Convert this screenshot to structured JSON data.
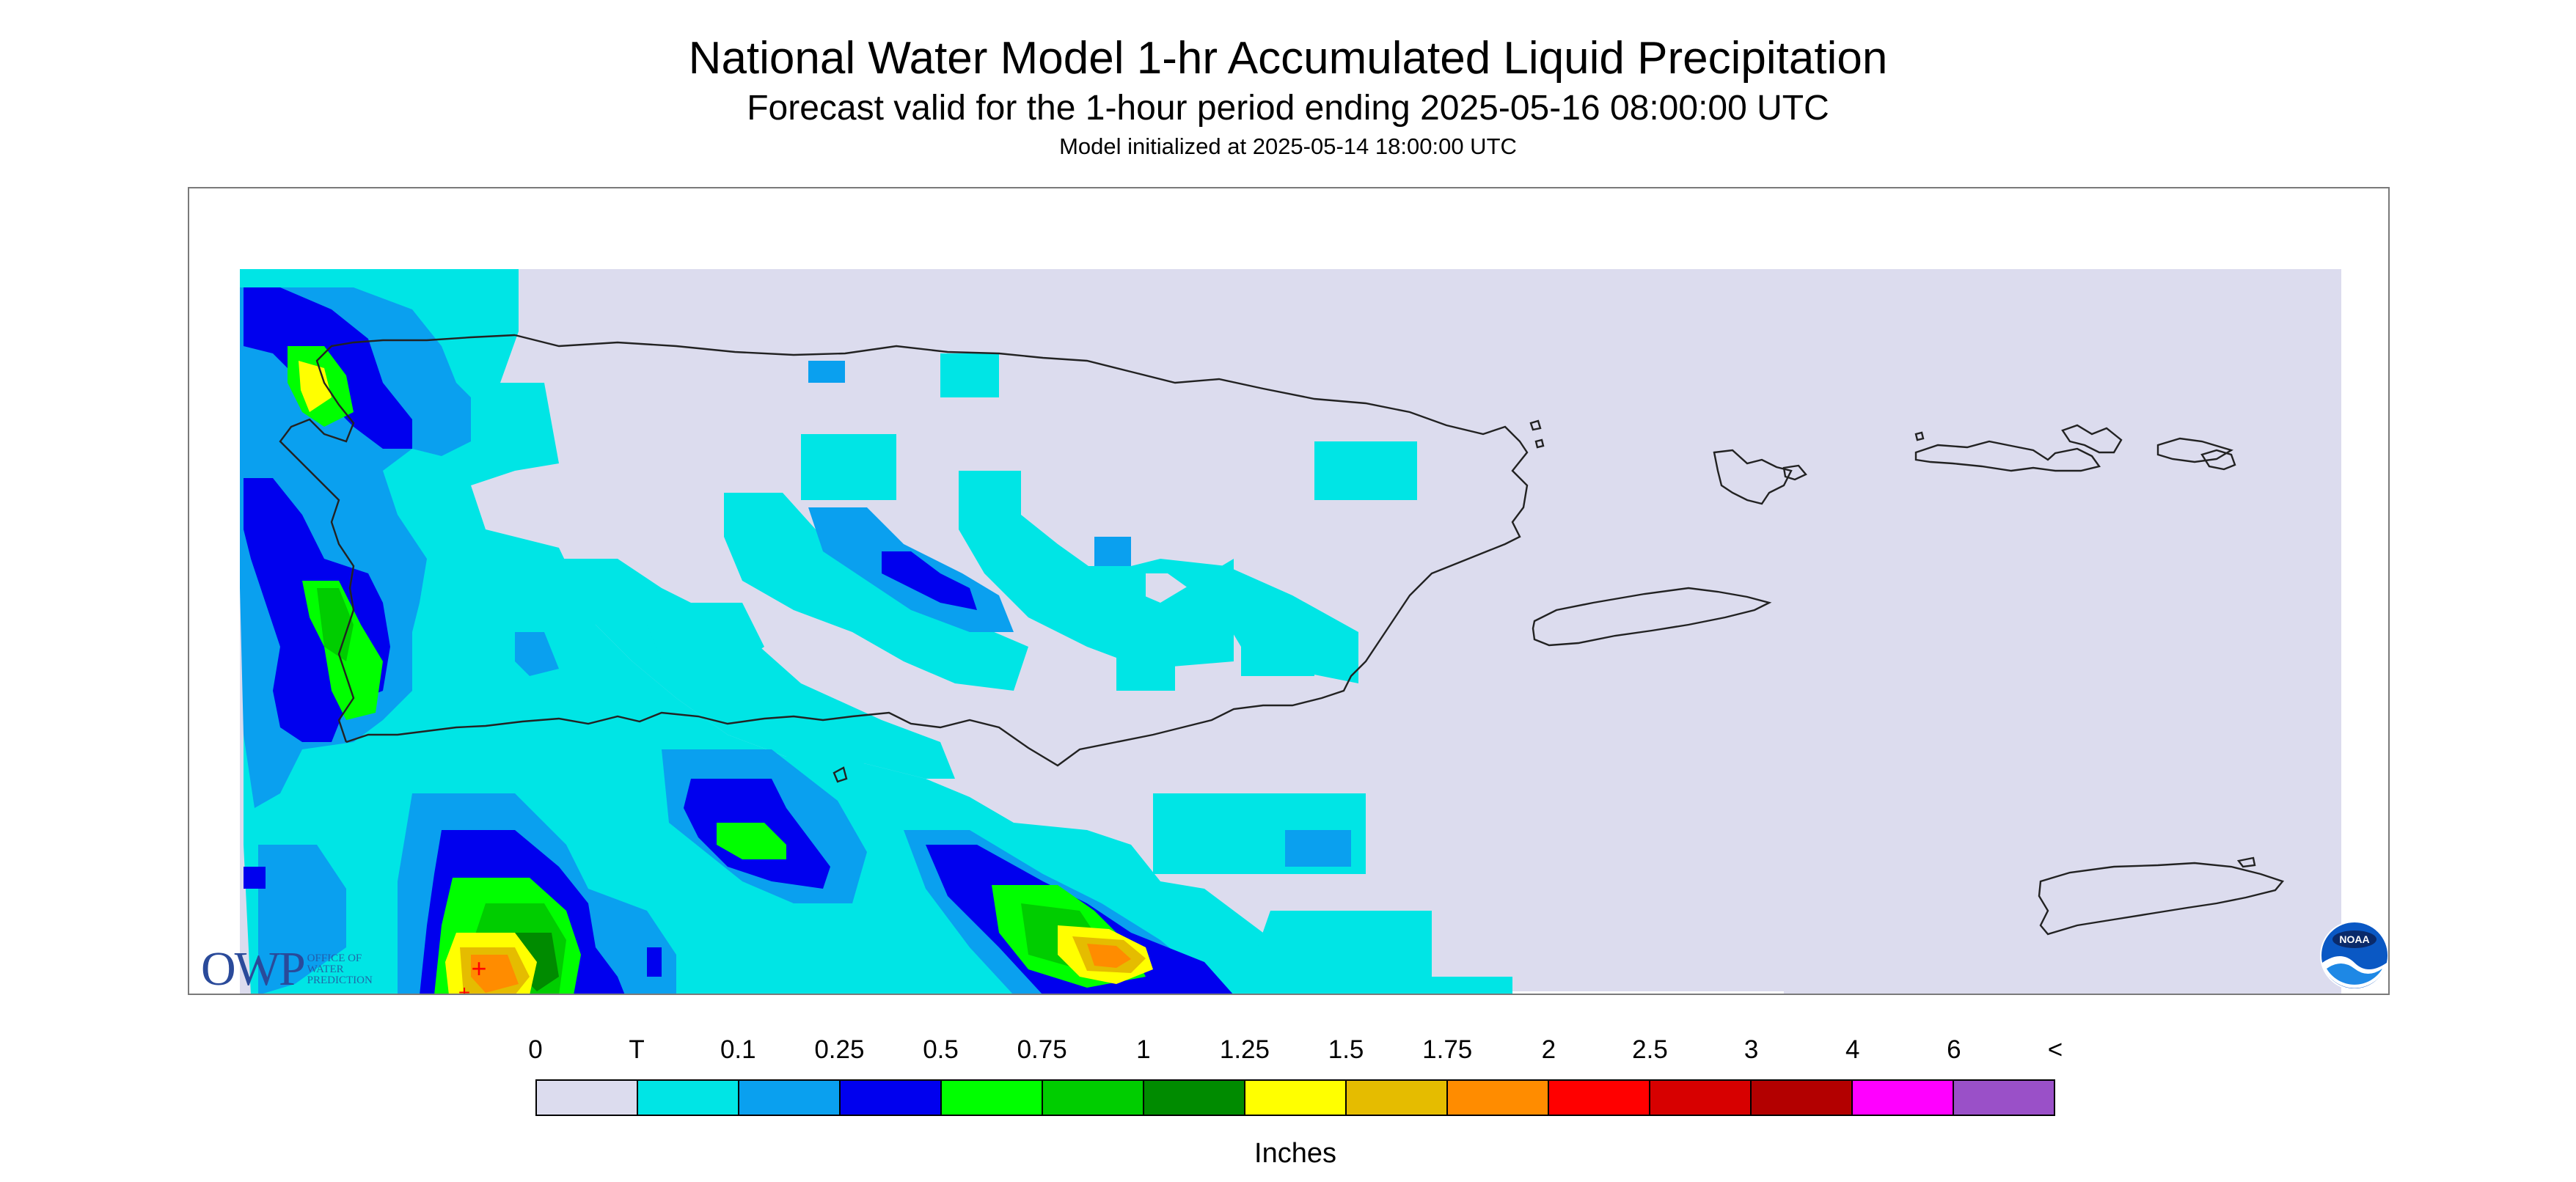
{
  "header": {
    "title": "National Water Model 1-hr Accumulated Liquid Precipitation",
    "subtitle": "Forecast valid for the 1-hour period ending 2025-05-16 08:00:00 UTC",
    "init": "Model initialized at 2025-05-14 18:00:00 UTC"
  },
  "legend": {
    "ticks": [
      "0",
      "T",
      "0.1",
      "0.25",
      "0.5",
      "0.75",
      "1",
      "1.25",
      "1.5",
      "1.75",
      "2",
      "2.5",
      "3",
      "4",
      "6",
      "<"
    ],
    "colors": [
      "#dcdcee",
      "#00e5e5",
      "#0aa0ef",
      "#0000ee",
      "#00ff00",
      "#00cd00",
      "#008b00",
      "#ffff00",
      "#e5bc00",
      "#ff8c00",
      "#ff0000",
      "#d70000",
      "#b30000",
      "#ff00ff",
      "#9a50c8"
    ],
    "units": "Inches"
  },
  "logos": {
    "owp_big": "OWP",
    "owp_small": [
      "OFFICE OF",
      "WATER",
      "PREDICTION"
    ],
    "noaa": "NOAA"
  },
  "map": {
    "region": "Puerto Rico and U.S. Virgin Islands",
    "max_precip_marker": "+"
  }
}
